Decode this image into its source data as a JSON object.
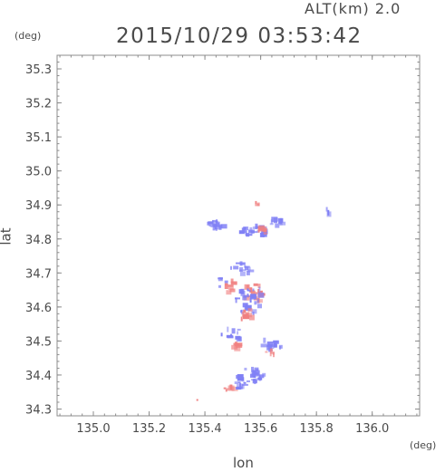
{
  "header": {
    "altitude_label": "ALT(km)  2.0",
    "timestamp": "2015/10/29 03:53:42"
  },
  "chart_data": {
    "type": "heatmap",
    "title": "2015/10/29 03:53:42",
    "xlabel": "lon",
    "ylabel": "lat",
    "xunit": "(deg)",
    "yunit": "(deg)",
    "xlim": [
      134.87,
      136.17
    ],
    "ylim": [
      34.28,
      35.34
    ],
    "xticks": [
      135.0,
      135.2,
      135.4,
      135.6,
      135.8,
      136.0
    ],
    "xtick_labels": [
      "135.0",
      "135.2",
      "135.4",
      "135.6",
      "135.8",
      "136.0"
    ],
    "yticks": [
      34.3,
      34.4,
      34.5,
      34.6,
      34.7,
      34.8,
      34.9,
      35.0,
      35.1,
      35.2,
      35.3
    ],
    "ytick_labels": [
      "34.3",
      "34.4",
      "34.5",
      "34.6",
      "34.7",
      "34.8",
      "34.9",
      "35.0",
      "35.1",
      "35.2",
      "35.3"
    ],
    "grid": true,
    "colors": {
      "positive": "#f08080",
      "negative": "#7f7ff5",
      "frame": "#8c8c8c",
      "text": "#4a4a4a"
    },
    "regions": [
      {
        "sign": "negative",
        "lon": 135.44,
        "lat": 34.84,
        "r_lon": 0.03,
        "r_lat": 0.015,
        "n": 18
      },
      {
        "sign": "negative",
        "lon": 135.58,
        "lat": 34.82,
        "r_lon": 0.05,
        "r_lat": 0.02,
        "n": 28
      },
      {
        "sign": "positive",
        "lon": 135.6,
        "lat": 34.82,
        "r_lon": 0.02,
        "r_lat": 0.015,
        "n": 8
      },
      {
        "sign": "positive",
        "lon": 135.59,
        "lat": 34.91,
        "r_lon": 0.01,
        "r_lat": 0.01,
        "n": 3
      },
      {
        "sign": "negative",
        "lon": 135.66,
        "lat": 34.85,
        "r_lon": 0.03,
        "r_lat": 0.015,
        "n": 10
      },
      {
        "sign": "negative",
        "lon": 135.84,
        "lat": 34.88,
        "r_lon": 0.01,
        "r_lat": 0.01,
        "n": 3
      },
      {
        "sign": "negative",
        "lon": 135.53,
        "lat": 34.71,
        "r_lon": 0.04,
        "r_lat": 0.02,
        "n": 15
      },
      {
        "sign": "positive",
        "lon": 135.58,
        "lat": 34.64,
        "r_lon": 0.04,
        "r_lat": 0.03,
        "n": 20
      },
      {
        "sign": "negative",
        "lon": 135.56,
        "lat": 34.62,
        "r_lon": 0.06,
        "r_lat": 0.04,
        "n": 30
      },
      {
        "sign": "positive",
        "lon": 135.49,
        "lat": 34.66,
        "r_lon": 0.02,
        "r_lat": 0.02,
        "n": 8
      },
      {
        "sign": "negative",
        "lon": 135.46,
        "lat": 34.67,
        "r_lon": 0.02,
        "r_lat": 0.015,
        "n": 6
      },
      {
        "sign": "positive",
        "lon": 135.55,
        "lat": 34.58,
        "r_lon": 0.03,
        "r_lat": 0.02,
        "n": 10
      },
      {
        "sign": "negative",
        "lon": 135.5,
        "lat": 34.52,
        "r_lon": 0.04,
        "r_lat": 0.02,
        "n": 12
      },
      {
        "sign": "positive",
        "lon": 135.51,
        "lat": 34.49,
        "r_lon": 0.02,
        "r_lat": 0.015,
        "n": 6
      },
      {
        "sign": "negative",
        "lon": 135.64,
        "lat": 34.49,
        "r_lon": 0.04,
        "r_lat": 0.02,
        "n": 14
      },
      {
        "sign": "positive",
        "lon": 135.64,
        "lat": 34.47,
        "r_lon": 0.02,
        "r_lat": 0.015,
        "n": 5
      },
      {
        "sign": "negative",
        "lon": 135.57,
        "lat": 34.4,
        "r_lon": 0.06,
        "r_lat": 0.02,
        "n": 28
      },
      {
        "sign": "positive",
        "lon": 135.49,
        "lat": 34.36,
        "r_lon": 0.02,
        "r_lat": 0.01,
        "n": 6
      },
      {
        "sign": "negative",
        "lon": 135.53,
        "lat": 34.37,
        "r_lon": 0.03,
        "r_lat": 0.012,
        "n": 10
      },
      {
        "sign": "positive",
        "lon": 135.37,
        "lat": 34.33,
        "r_lon": 0.005,
        "r_lat": 0.005,
        "n": 1
      }
    ]
  }
}
